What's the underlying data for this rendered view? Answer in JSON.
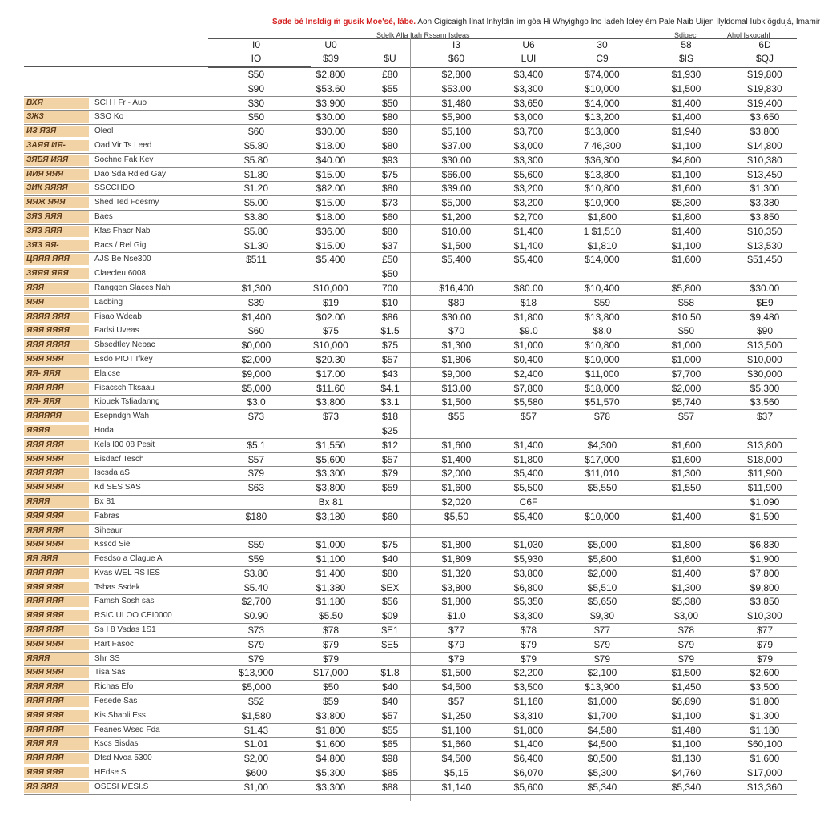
{
  "title": {
    "red": "Søde bé Insldig ṁ gusik Moe'sé, Iábe.",
    "rest": "Aon Cigicaigh Ilnat Inhyldin ím góa Hi Whyighgo Ino Iadeh Ioléy ém Pale Naib Uijen Ilyldomal Iubk ốgdujá, Imamin ipuábtc"
  },
  "subheaders": [
    "Sdelk Alla Itah Rssam Isdeas",
    "Sdjgec",
    "Ahol Iskgcahl"
  ],
  "header_row1": [
    "I0",
    "U0",
    "",
    "I3",
    "U6",
    "30",
    "58",
    "6D"
  ],
  "header_row2": [
    "IO",
    "$39",
    "$U",
    "$60",
    "LUI",
    "C9",
    "$IS",
    "$QJ"
  ],
  "rows": [
    {
      "label": "",
      "desc": "",
      "v": [
        "$50",
        "$2,800",
        "£80",
        "$2,800",
        "$3,400",
        "$74,000",
        "$1,930",
        "$19,800"
      ]
    },
    {
      "label": "",
      "desc": "",
      "v": [
        "$90",
        "$53.60",
        "$55",
        "$53.00",
        "$3,300",
        "$10,000",
        "$1,500",
        "$19,830"
      ]
    },
    {
      "label": "ВХЯ",
      "desc": "SCH I Fr - Auo",
      "v": [
        "$30",
        "$3,900",
        "$50",
        "$1,480",
        "$3,650",
        "$14,000",
        "$1,400",
        "$19,400"
      ]
    },
    {
      "label": "ЗЖЗ",
      "desc": "SSO Ko",
      "v": [
        "$50",
        "$30.00",
        "$80",
        "$5,900",
        "$3,000",
        "$13,200",
        "$1,400",
        "$3,650"
      ]
    },
    {
      "label": "ИЗ ЯЗЯ",
      "desc": "Oleol",
      "v": [
        "$60",
        "$30.00",
        "$90",
        "$5,100",
        "$3,700",
        "$13,800",
        "$1,940",
        "$3,800"
      ]
    },
    {
      "label": "ЗАЯЯ ИЯ-",
      "desc": "Oad Vir Ts Leed",
      "v": [
        "$5.80",
        "$18.00",
        "$80",
        "$37.00",
        "$3,000",
        "7 46,300",
        "$1,100",
        "$14,800"
      ]
    },
    {
      "label": "ЗЯБЯ ИЯЯ",
      "desc": "Sochne Fak Key",
      "v": [
        "$5.80",
        "$40.00",
        "$93",
        "$30.00",
        "$3,300",
        "$36,300",
        "$4,800",
        "$10,380"
      ]
    },
    {
      "label": "ИИЯ ЯЯЯ",
      "desc": "Dao Sda Rdled Gay",
      "v": [
        "$1.80",
        "$15.00",
        "$75",
        "$66.00",
        "$5,600",
        "$13,800",
        "$1,100",
        "$13,450"
      ]
    },
    {
      "label": "ЗИК ЯЯЯЯ",
      "desc": "SSCCHDO",
      "v": [
        "$1.20",
        "$82.00",
        "$80",
        "$39.00",
        "$3,200",
        "$10,800",
        "$1,600",
        "$1,300"
      ]
    },
    {
      "label": "ЯЯЖ ЯЯЯ",
      "desc": "Shed Ted Fdesmy",
      "v": [
        "$5.00",
        "$15.00",
        "$73",
        "$5,000",
        "$3,200",
        "$10,900",
        "$5,300",
        "$3,380"
      ]
    },
    {
      "label": "ЗЯЗ ЯЯЯ",
      "desc": "Baes",
      "v": [
        "$3.80",
        "$18.00",
        "$60",
        "$1,200",
        "$2,700",
        "$1,800",
        "$1,800",
        "$3,850"
      ]
    },
    {
      "label": "ЗЯЗ ЯЯЯ",
      "desc": "Kfas Fhacr Nab",
      "v": [
        "$5.80",
        "$36.00",
        "$80",
        "$10.00",
        "$1,400",
        "1 $1,510",
        "$1,400",
        "$10,350"
      ]
    },
    {
      "label": "ЗЯЗ ЯЯ-",
      "desc": "Racs / Rel Gig",
      "v": [
        "$1.30",
        "$15.00",
        "$37",
        "$1,500",
        "$1,400",
        "$1,810",
        "$1,100",
        "$13,530"
      ]
    },
    {
      "label": "ЦЯЯЯ ЯЯЯ",
      "desc": "AJS Be Nse300",
      "v": [
        "$511",
        "$5,400",
        "£50",
        "$5,400",
        "$5,400",
        "$14,000",
        "$1,600",
        "$51,450"
      ]
    },
    {
      "label": "ЗЯЯЯ ЯЯЯ",
      "desc": "Claecleu 6008",
      "v": [
        "",
        "",
        "$50",
        "",
        "",
        "",
        "",
        ""
      ]
    },
    {
      "label": "ЯЯЯ",
      "desc": "Ranggen Slaces Nah",
      "v": [
        "$1,300",
        "$10,000",
        "700",
        "$16,400",
        "$80.00",
        "$10,400",
        "$5,800",
        "$30.00"
      ]
    },
    {
      "label": "ЯЯЯ",
      "desc": "Lacbing",
      "v": [
        "$39",
        "$19",
        "$10",
        "$89",
        "$18",
        "$59",
        "$58",
        "$E9"
      ]
    },
    {
      "label": "ЯЯЯЯ ЯЯЯ",
      "desc": "Fisao Wdeab",
      "v": [
        "$1,400",
        "$02.00",
        "$86",
        "$30.00",
        "$1,800",
        "$13,800",
        "$10.50",
        "$9,480"
      ]
    },
    {
      "label": "ЯЯЯ ЯЯЯЯ",
      "desc": "Fadsi Uveas",
      "v": [
        "$60",
        "$75",
        "$1.5",
        "$70",
        "$9.0",
        "$8.0",
        "$50",
        "$90"
      ]
    },
    {
      "label": "ЯЯЯ ЯЯЯЯ",
      "desc": "Sbsedtley Nebac",
      "v": [
        "$0,000",
        "$10,000",
        "$75",
        "$1,300",
        "$1,000",
        "$10,800",
        "$1,000",
        "$13,500"
      ]
    },
    {
      "label": "ЯЯЯ ЯЯЯ",
      "desc": "Esdo PIOT Ifkey",
      "v": [
        "$2,000",
        "$20.30",
        "$57",
        "$1,806",
        "$0,400",
        "$10,000",
        "$1,000",
        "$10,000"
      ]
    },
    {
      "label": "ЯЯ- ЯЯЯ",
      "desc": "Elaicse",
      "v": [
        "$9,000",
        "$17.00",
        "$43",
        "$9,000",
        "$2,400",
        "$11,000",
        "$7,700",
        "$30,000"
      ]
    },
    {
      "label": "ЯЯЯ ЯЯЯ",
      "desc": "Fisacsch Tksaau",
      "v": [
        "$5,000",
        "$11.60",
        "$4.1",
        "$13.00",
        "$7,800",
        "$18,000",
        "$2,000",
        "$5,300"
      ]
    },
    {
      "label": "ЯЯ- ЯЯЯ",
      "desc": "Kiouek Tsfiadanng",
      "v": [
        "$3.0",
        "$3,800",
        "$3.1",
        "$1,500",
        "$5,580",
        "$51,570",
        "$5,740",
        "$3,560"
      ]
    },
    {
      "label": "ЯЯЯЯЯЯ",
      "desc": "Esepndgh Wah",
      "v": [
        "$73",
        "$73",
        "$18",
        "$55",
        "$57",
        "$78",
        "$57",
        "$37"
      ]
    },
    {
      "label": "ЯЯЯЯ",
      "desc": "Hoda",
      "v": [
        "",
        "",
        "$25",
        "",
        "",
        "",
        "",
        ""
      ]
    },
    {
      "label": "ЯЯЯ ЯЯЯ",
      "desc": "Kels I00 08 Pesit",
      "v": [
        "$5.1",
        "$1,550",
        "$12",
        "$1,600",
        "$1,400",
        "$4,300",
        "$1,600",
        "$13,800"
      ]
    },
    {
      "label": "ЯЯЯ ЯЯЯ",
      "desc": "Eisdacf Tesch",
      "v": [
        "$57",
        "$5,600",
        "$57",
        "$1,400",
        "$1,800",
        "$17,000",
        "$1,600",
        "$18,000"
      ]
    },
    {
      "label": "ЯЯЯ ЯЯЯ",
      "desc": "Iscsda aS",
      "v": [
        "$79",
        "$3,300",
        "$79",
        "$2,000",
        "$5,400",
        "$11,010",
        "$1,300",
        "$11,900"
      ]
    },
    {
      "label": "ЯЯЯ ЯЯЯ",
      "desc": "Kd SES SAS",
      "v": [
        "$63",
        "$3,800",
        "$59",
        "$1,600",
        "$5,500",
        "$5,550",
        "$1,550",
        "$11,900"
      ]
    },
    {
      "label": "ЯЯЯЯ",
      "desc": "Bx 81",
      "v": [
        "",
        "Bx 81",
        "",
        "$2,020",
        "C6F",
        "",
        "",
        "$1,090"
      ]
    },
    {
      "label": "ЯЯЯ ЯЯЯ",
      "desc": "Fabras",
      "v": [
        "$180",
        "$3,180",
        "$60",
        "$5,50",
        "$5,400",
        "$10,000",
        "$1,400",
        "$1,590"
      ]
    },
    {
      "label": "ЯЯЯ ЯЯЯ",
      "desc": "Siheaur",
      "v": [
        "",
        "",
        "",
        "",
        "",
        "",
        "",
        ""
      ]
    },
    {
      "label": "ЯЯЯ ЯЯЯ",
      "desc": "Ksscd Sie",
      "v": [
        "$59",
        "$1,000",
        "$75",
        "$1,800",
        "$1,030",
        "$5,000",
        "$1,800",
        "$6,830"
      ]
    },
    {
      "label": "ЯЯ ЯЯЯ",
      "desc": "Fesdso a Clague A",
      "v": [
        "$59",
        "$1,100",
        "$40",
        "$1,809",
        "$5,930",
        "$5,800",
        "$1,600",
        "$1,900"
      ]
    },
    {
      "label": "ЯЯЯ ЯЯЯ",
      "desc": "Kvas WEL RS IES",
      "v": [
        "$3.80",
        "$1,400",
        "$80",
        "$1,320",
        "$3,800",
        "$2,000",
        "$1,400",
        "$7,800"
      ]
    },
    {
      "label": "ЯЯЯ ЯЯЯ",
      "desc": "Tshas Ssdek",
      "v": [
        "$5.40",
        "$1,380",
        "$EX",
        "$3,800",
        "$6,800",
        "$5,510",
        "$1,300",
        "$9,800"
      ]
    },
    {
      "label": "ЯЯЯ ЯЯЯ",
      "desc": "Famsh Sosh sas",
      "v": [
        "$2,700",
        "$1,180",
        "$56",
        "$1,800",
        "$5,350",
        "$5,650",
        "$5,380",
        "$3,850"
      ]
    },
    {
      "label": "ЯЯЯ ЯЯЯ",
      "desc": "RSIC ULOO CEI0000",
      "v": [
        "$0.90",
        "$5.50",
        "$09",
        "$1.0",
        "$3,300",
        "$9,30",
        "$3,00",
        "$10,300"
      ]
    },
    {
      "label": "ЯЯЯ ЯЯЯ",
      "desc": "Ss I 8 Vsdas 1S1",
      "v": [
        "$73",
        "$78",
        "$E1",
        "$77",
        "$78",
        "$77",
        "$78",
        "$77"
      ]
    },
    {
      "label": "ЯЯЯ ЯЯЯ",
      "desc": "Rart Fasoc",
      "v": [
        "$79",
        "$79",
        "$E5",
        "$79",
        "$79",
        "$79",
        "$79",
        "$79"
      ]
    },
    {
      "label": "ЯЯЯЯ",
      "desc": "Shr SS",
      "v": [
        "$79",
        "$79",
        "",
        "$79",
        "$79",
        "$79",
        "$79",
        "$79"
      ]
    },
    {
      "label": "ЯЯЯ ЯЯЯ",
      "desc": "Tisa Sas",
      "v": [
        "$13,900",
        "$17,000",
        "$1.8",
        "$1,500",
        "$2,200",
        "$2,100",
        "$1,500",
        "$2,600"
      ]
    },
    {
      "label": "ЯЯЯ ЯЯЯ",
      "desc": "Richas Efo",
      "v": [
        "$5,000",
        "$50",
        "$40",
        "$4,500",
        "$3,500",
        "$13,900",
        "$1,450",
        "$3,500"
      ]
    },
    {
      "label": "ЯЯЯ ЯЯЯ",
      "desc": "Fesede Sas",
      "v": [
        "$52",
        "$59",
        "$40",
        "$57",
        "$1,160",
        "$1,000",
        "$6,890",
        "$1,800"
      ]
    },
    {
      "label": "ЯЯЯ ЯЯЯ",
      "desc": "Kis Sbaoli Ess",
      "v": [
        "$1,580",
        "$3,800",
        "$57",
        "$1,250",
        "$3,310",
        "$1,700",
        "$1,100",
        "$1,300"
      ]
    },
    {
      "label": "ЯЯЯ ЯЯЯ",
      "desc": "Feanes Wsed Fda",
      "v": [
        "$1.43",
        "$1,800",
        "$55",
        "$1,100",
        "$1,800",
        "$4,580",
        "$1,480",
        "$1,180"
      ]
    },
    {
      "label": "ЯЯЯ ЯЯ",
      "desc": "Kscs Sisdas",
      "v": [
        "$1.01",
        "$1,600",
        "$65",
        "$1,660",
        "$1,400",
        "$4,500",
        "$1,100",
        "$60,100"
      ]
    },
    {
      "label": "ЯЯЯ ЯЯЯ",
      "desc": "Dfsd Nvoa 5300",
      "v": [
        "$2,00",
        "$4,800",
        "$98",
        "$4,500",
        "$6,400",
        "$0,500",
        "$1,130",
        "$1,600"
      ]
    },
    {
      "label": "ЯЯЯ ЯЯЯ",
      "desc": "HEdse S",
      "v": [
        "$600",
        "$5,300",
        "$85",
        "$5,15",
        "$6,070",
        "$5,300",
        "$4,760",
        "$17,000"
      ]
    },
    {
      "label": "ЯЯ ЯЯЯ",
      "desc": "OSESI MESI.S",
      "v": [
        "$1,00",
        "$3,300",
        "$88",
        "$1,140",
        "$5,600",
        "$5,340",
        "$5,340",
        "$13,360"
      ]
    }
  ]
}
